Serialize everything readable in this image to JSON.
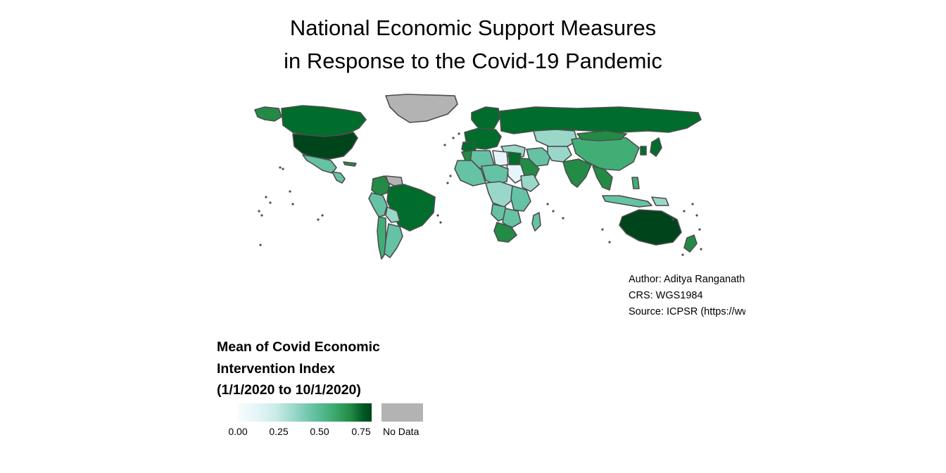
{
  "title": {
    "line1": "National Economic Support Measures",
    "line2": "in Response to the Covid-19 Pandemic"
  },
  "credits": {
    "author": "Author: Aditya Ranganath",
    "crs": "CRS: WGS1984",
    "source": "Source: ICPSR (https://www.openicpsr.org)"
  },
  "legend": {
    "title_line1": "Mean of Covid Economic",
    "title_line2": "Intervention Index",
    "title_line3": "(1/1/2020 to 10/1/2020)",
    "ticks": [
      "0.00",
      "0.25",
      "0.50",
      "0.75"
    ],
    "no_data_label": "No Data"
  },
  "colors": {
    "no_data": "#b3b3b3",
    "border": "#4d4d4d",
    "scale": [
      "#f7fcfd",
      "#e5f5f9",
      "#ccece6",
      "#99d8c9",
      "#66c2a4",
      "#41ae76",
      "#238b45",
      "#006d2c",
      "#00441b"
    ]
  },
  "map": {
    "projection": "WGS1984 (equirectangular)",
    "regions": [
      {
        "name": "Alaska",
        "value": 0.62
      },
      {
        "name": "Canada",
        "value": 0.66
      },
      {
        "name": "United States",
        "value": 0.78
      },
      {
        "name": "Mexico",
        "value": 0.44
      },
      {
        "name": "Central America",
        "value": 0.42
      },
      {
        "name": "Cuba",
        "value": 0.6
      },
      {
        "name": "Greenland",
        "value": null
      },
      {
        "name": "Colombia",
        "value": 0.62
      },
      {
        "name": "Venezuela",
        "value": null
      },
      {
        "name": "Brazil",
        "value": 0.66
      },
      {
        "name": "Peru",
        "value": 0.44
      },
      {
        "name": "Bolivia",
        "value": 0.3
      },
      {
        "name": "Argentina",
        "value": 0.44
      },
      {
        "name": "Chile",
        "value": 0.52
      },
      {
        "name": "Scandinavia",
        "value": 0.66
      },
      {
        "name": "Western Europe",
        "value": 0.66
      },
      {
        "name": "Iberia",
        "value": 0.66
      },
      {
        "name": "Russia",
        "value": 0.7
      },
      {
        "name": "Kazakhstan",
        "value": 0.3
      },
      {
        "name": "Middle East",
        "value": 0.3
      },
      {
        "name": "Saudi Arabia",
        "value": 0.62
      },
      {
        "name": "Iran",
        "value": 0.38
      },
      {
        "name": "Central Asia",
        "value": 0.28
      },
      {
        "name": "India",
        "value": 0.6
      },
      {
        "name": "China",
        "value": 0.52
      },
      {
        "name": "Mongolia",
        "value": 0.56
      },
      {
        "name": "Southeast Asia",
        "value": 0.58
      },
      {
        "name": "Japan",
        "value": 0.7
      },
      {
        "name": "Korea",
        "value": 0.66
      },
      {
        "name": "Indonesia",
        "value": 0.4
      },
      {
        "name": "Philippines",
        "value": 0.5
      },
      {
        "name": "Papua New Guinea",
        "value": 0.3
      },
      {
        "name": "Australia",
        "value": 0.78
      },
      {
        "name": "New Zealand",
        "value": 0.62
      },
      {
        "name": "Morocco",
        "value": 0.62
      },
      {
        "name": "Algeria",
        "value": 0.42
      },
      {
        "name": "Libya",
        "value": 0.08
      },
      {
        "name": "Egypt",
        "value": 0.66
      },
      {
        "name": "Sudan",
        "value": 0.05
      },
      {
        "name": "Ethiopia",
        "value": 0.3
      },
      {
        "name": "West Africa",
        "value": 0.4
      },
      {
        "name": "Sahel",
        "value": 0.36
      },
      {
        "name": "Central Africa",
        "value": 0.34
      },
      {
        "name": "East Africa",
        "value": 0.4
      },
      {
        "name": "Angola",
        "value": 0.38
      },
      {
        "name": "Southern Africa",
        "value": 0.4
      },
      {
        "name": "South Africa",
        "value": 0.62
      },
      {
        "name": "Madagascar",
        "value": 0.4
      }
    ]
  }
}
